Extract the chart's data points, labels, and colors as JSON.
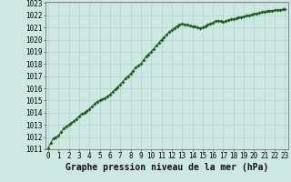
{
  "x_data": [
    0.0,
    0.25,
    0.5,
    0.75,
    1.0,
    1.25,
    1.5,
    1.75,
    2.0,
    2.25,
    2.5,
    2.75,
    3.0,
    3.25,
    3.5,
    3.75,
    4.0,
    4.25,
    4.5,
    4.75,
    5.0,
    5.25,
    5.5,
    5.75,
    6.0,
    6.25,
    6.5,
    6.75,
    7.0,
    7.25,
    7.5,
    7.75,
    8.0,
    8.25,
    8.5,
    8.75,
    9.0,
    9.25,
    9.5,
    9.75,
    10.0,
    10.25,
    10.5,
    10.75,
    11.0,
    11.25,
    11.5,
    11.75,
    12.0,
    12.25,
    12.5,
    12.75,
    13.0,
    13.25,
    13.5,
    13.75,
    14.0,
    14.25,
    14.5,
    14.75,
    15.0,
    15.25,
    15.5,
    15.75,
    16.0,
    16.25,
    16.5,
    16.75,
    17.0,
    17.25,
    17.5,
    17.75,
    18.0,
    18.25,
    18.5,
    18.75,
    19.0,
    19.25,
    19.5,
    19.75,
    20.0,
    20.25,
    20.5,
    20.75,
    21.0,
    21.25,
    21.5,
    21.75,
    22.0,
    22.25,
    22.5,
    22.75,
    23.0
  ],
  "y_data": [
    1011.1,
    1011.5,
    1011.9,
    1012.0,
    1012.1,
    1012.4,
    1012.7,
    1012.9,
    1013.0,
    1013.15,
    1013.3,
    1013.5,
    1013.7,
    1013.9,
    1014.0,
    1014.15,
    1014.3,
    1014.5,
    1014.7,
    1014.9,
    1015.0,
    1015.1,
    1015.2,
    1015.35,
    1015.5,
    1015.7,
    1015.9,
    1016.1,
    1016.3,
    1016.55,
    1016.8,
    1017.0,
    1017.2,
    1017.45,
    1017.7,
    1017.85,
    1018.0,
    1018.3,
    1018.6,
    1018.8,
    1019.0,
    1019.25,
    1019.5,
    1019.75,
    1020.0,
    1020.2,
    1020.4,
    1020.6,
    1020.8,
    1020.95,
    1021.1,
    1021.2,
    1021.3,
    1021.25,
    1021.2,
    1021.15,
    1021.1,
    1021.05,
    1021.0,
    1020.95,
    1021.0,
    1021.1,
    1021.2,
    1021.3,
    1021.4,
    1021.5,
    1021.55,
    1021.5,
    1021.45,
    1021.5,
    1021.6,
    1021.65,
    1021.7,
    1021.75,
    1021.8,
    1021.85,
    1021.9,
    1021.95,
    1022.0,
    1022.05,
    1022.1,
    1022.15,
    1022.2,
    1022.25,
    1022.3,
    1022.32,
    1022.35,
    1022.38,
    1022.4,
    1022.42,
    1022.45,
    1022.47,
    1022.5
  ],
  "ylim_min": 1011,
  "ylim_max": 1023,
  "yticks": [
    1011,
    1012,
    1013,
    1014,
    1015,
    1016,
    1017,
    1018,
    1019,
    1020,
    1021,
    1022,
    1023
  ],
  "xticks": [
    0,
    1,
    2,
    3,
    4,
    5,
    6,
    7,
    8,
    9,
    10,
    11,
    12,
    13,
    14,
    15,
    16,
    17,
    18,
    19,
    20,
    21,
    22,
    23
  ],
  "xlabel": "Graphe pression niveau de la mer (hPa)",
  "line_color": "#1a5c1a",
  "marker": "D",
  "marker_size": 1.8,
  "bg_color": "#cde8e2",
  "grid_color": "#b0d4ce",
  "tick_label_fontsize": 5.5,
  "xlabel_fontsize": 7.0,
  "xlabel_fontweight": "bold"
}
